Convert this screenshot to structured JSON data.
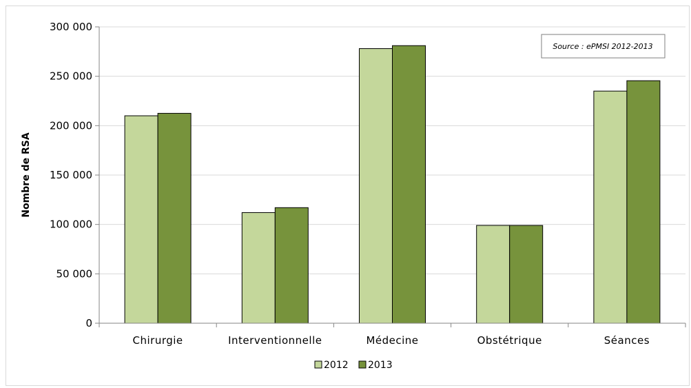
{
  "chart_data": {
    "type": "bar",
    "categories": [
      "Chirurgie",
      "Interventionnelle",
      "Médecine",
      "Obstétrique",
      "Séances"
    ],
    "series": [
      {
        "name": "2012",
        "values": [
          210000,
          112000,
          278000,
          99000,
          235000
        ],
        "color": "#c4d79b"
      },
      {
        "name": "2013",
        "values": [
          212500,
          117000,
          281000,
          99000,
          245500
        ],
        "color": "#77933c"
      }
    ],
    "ylabel": "Nombre de RSA",
    "ylim": [
      0,
      300000
    ],
    "yticks": [
      "0",
      "50 000",
      "100 000",
      "150 000",
      "200 000",
      "250 000",
      "300 000"
    ],
    "ytick_values": [
      0,
      50000,
      100000,
      150000,
      200000,
      250000,
      300000
    ],
    "grid": true,
    "legend_position": "bottom",
    "annotation": "Source : ePMSI 2012-2013"
  }
}
